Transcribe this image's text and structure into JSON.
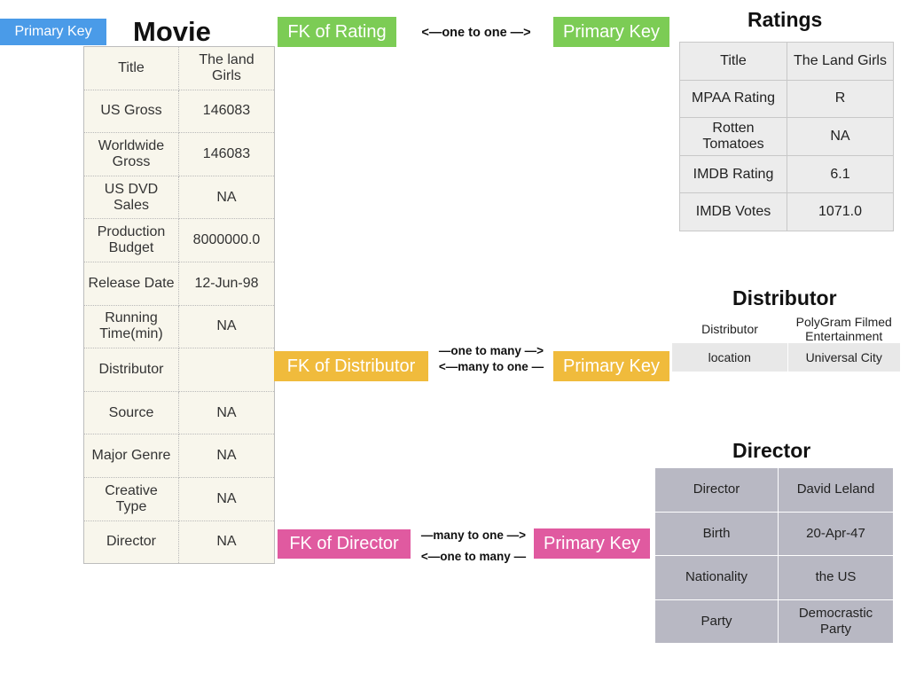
{
  "movie": {
    "heading": "Movie",
    "primary_key_tag": "Primary Key",
    "rows": [
      {
        "field": "Title",
        "value": "The land Girls"
      },
      {
        "field": "US Gross",
        "value": "146083"
      },
      {
        "field": "Worldwide Gross",
        "value": "146083"
      },
      {
        "field": "US DVD Sales",
        "value": "NA"
      },
      {
        "field": "Production Budget",
        "value": "8000000.0"
      },
      {
        "field": "Release Date",
        "value": "12-Jun-98"
      },
      {
        "field": "Running Time(min)",
        "value": "NA"
      },
      {
        "field": "Distributor",
        "value": ""
      },
      {
        "field": "Source",
        "value": "NA"
      },
      {
        "field": "Major Genre",
        "value": "NA"
      },
      {
        "field": "Creative Type",
        "value": "NA"
      },
      {
        "field": "Director",
        "value": "NA"
      }
    ]
  },
  "rating_link": {
    "fk_tag": "FK of Rating",
    "relation": "<—one to one —>",
    "pk_tag": "Primary Key"
  },
  "distributor_link": {
    "fk_tag": "FK of Distributor",
    "relation_line1": "—one to many —>",
    "relation_line2": "<—many to one —",
    "pk_tag": "Primary Key"
  },
  "director_link": {
    "fk_tag": "FK of Director",
    "relation_line1": "—many to one —>",
    "relation_line2": "<—one to many —",
    "pk_tag": "Primary Key"
  },
  "ratings": {
    "heading": "Ratings",
    "rows": [
      {
        "field": "Title",
        "value": "The Land Girls"
      },
      {
        "field": "MPAA Rating",
        "value": "R"
      },
      {
        "field": "Rotten Tomatoes",
        "value": "NA"
      },
      {
        "field": "IMDB Rating",
        "value": "6.1"
      },
      {
        "field": "IMDB Votes",
        "value": "1071.0"
      }
    ]
  },
  "distributor": {
    "heading": "Distributor",
    "rows": [
      {
        "field": "Distributor",
        "value": "PolyGram Filmed Entertainment"
      },
      {
        "field": "location",
        "value": "Universal City"
      }
    ]
  },
  "director": {
    "heading": "Director",
    "rows": [
      {
        "field": "Director",
        "value": "David Leland"
      },
      {
        "field": "Birth",
        "value": "20-Apr-47"
      },
      {
        "field": "Nationality",
        "value": "the US"
      },
      {
        "field": "Party",
        "value": "Democrastic Party"
      }
    ]
  },
  "colors": {
    "primary_key_blue": "#4a9be8",
    "rating_green": "#7ccc55",
    "distributor_orange": "#f0bb3c",
    "director_pink": "#e05aa0",
    "movie_table_bg": "#f8f6ec",
    "ratings_table_bg": "#ececec",
    "director_table_bg": "#b8b8c3"
  }
}
